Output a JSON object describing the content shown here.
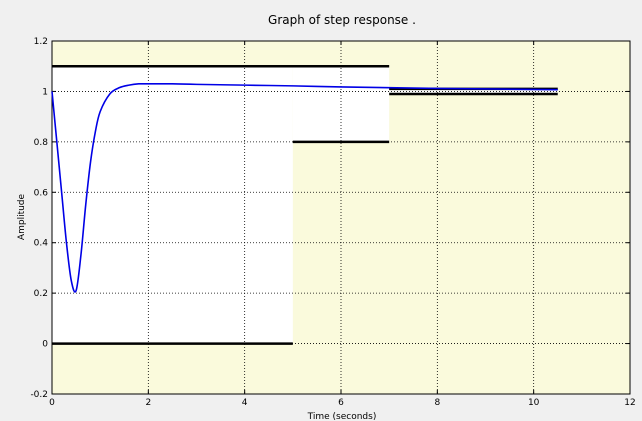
{
  "colors": {
    "figure_background": "#f0f0f0",
    "constraint_region": "#fafadc",
    "allowed_region": "#ffffff",
    "response_line": "#0000e6",
    "bound_line": "#000000",
    "grid": "#000000"
  },
  "chart_data": {
    "type": "line",
    "title": "Graph of step response .",
    "xlabel": "Time (seconds)",
    "ylabel": "Amplitude",
    "xlim": [
      0,
      12
    ],
    "ylim": [
      -0.2,
      1.2
    ],
    "xticks": [
      0,
      2,
      4,
      6,
      8,
      10,
      12
    ],
    "yticks": [
      -0.2,
      0,
      0.2,
      0.4,
      0.6,
      0.8,
      1,
      1.2
    ],
    "xtick_labels": [
      "0",
      "2",
      "4",
      "6",
      "8",
      "10",
      "12"
    ],
    "ytick_labels": [
      "-0.2",
      "0",
      "0.2",
      "0.4",
      "0.6",
      "0.8",
      "1",
      "1.2"
    ],
    "grid": true,
    "allowed_region": [
      {
        "x": [
          0,
          5
        ],
        "y": [
          0,
          1.1
        ]
      },
      {
        "x": [
          5,
          7
        ],
        "y": [
          0.8,
          1.1
        ]
      },
      {
        "x": [
          7,
          10.5
        ],
        "y": [
          0.99,
          1.01
        ]
      }
    ],
    "bounds": [
      {
        "kind": "upper",
        "x": [
          0,
          7
        ],
        "y": 1.1
      },
      {
        "kind": "upper",
        "x": [
          7,
          10.5
        ],
        "y": 1.01
      },
      {
        "kind": "lower",
        "x": [
          0,
          5
        ],
        "y": 0
      },
      {
        "kind": "lower",
        "x": [
          5,
          7
        ],
        "y": 0.8
      },
      {
        "kind": "lower",
        "x": [
          7,
          10.5
        ],
        "y": 0.99
      }
    ],
    "series": [
      {
        "x": [
          0,
          0.1,
          0.2,
          0.3,
          0.4,
          0.5,
          0.6,
          0.7,
          0.8,
          0.9,
          1.0,
          1.2,
          1.4,
          1.6,
          1.8,
          2.0,
          2.5,
          3,
          4,
          5,
          6,
          7,
          8,
          9,
          10,
          10.5
        ],
        "y": [
          1.0,
          0.8,
          0.6,
          0.4,
          0.25,
          0.21,
          0.35,
          0.55,
          0.72,
          0.84,
          0.92,
          0.99,
          1.015,
          1.025,
          1.03,
          1.03,
          1.03,
          1.028,
          1.025,
          1.022,
          1.018,
          1.015,
          1.012,
          1.01,
          1.008,
          1.007
        ]
      }
    ]
  }
}
